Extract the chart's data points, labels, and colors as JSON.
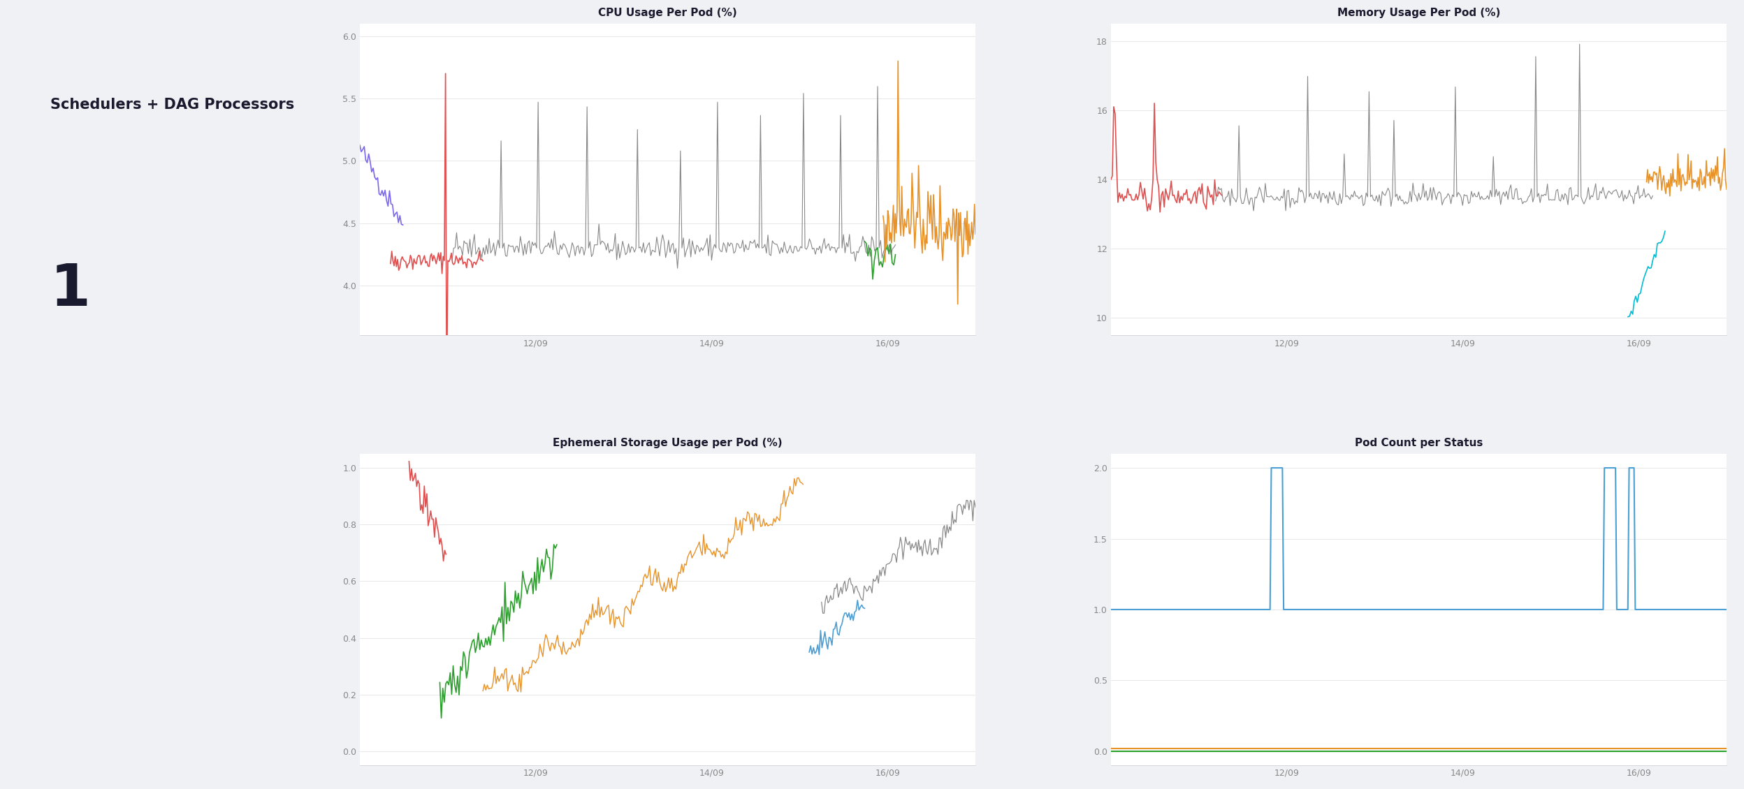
{
  "title": "Schedulers + DAG Processors",
  "number": "1",
  "panel_bg": "#f0f1f5",
  "chart_bg": "#ffffff",
  "border_color": "#e0e0e0",
  "cpu_title": "CPU Usage Per Pod (%)",
  "cpu_ylim": [
    3.6,
    6.1
  ],
  "cpu_yticks": [
    4.0,
    4.5,
    5.0,
    5.5,
    6.0
  ],
  "mem_title": "Memory Usage Per Pod (%)",
  "mem_ylim": [
    9.5,
    18.5
  ],
  "mem_yticks": [
    10,
    12,
    14,
    16,
    18
  ],
  "eph_title": "Ephemeral Storage Usage per Pod (%)",
  "eph_ylim": [
    -0.05,
    1.05
  ],
  "eph_yticks": [
    0,
    0.2,
    0.4,
    0.6,
    0.8,
    1.0
  ],
  "pod_title": "Pod Count per Status",
  "pod_ylim": [
    -0.1,
    2.1
  ],
  "pod_yticks": [
    0,
    0.5,
    1.0,
    1.5,
    2.0
  ],
  "xtick_labels": [
    "12/09",
    "14/09",
    "16/09"
  ],
  "colors": {
    "purple": "#7B68EE",
    "red": "#E05050",
    "gray": "#888888",
    "orange": "#E8922A",
    "green": "#2CA02C",
    "blue": "#4B9FD4",
    "dark_blue": "#1A5F9B",
    "teal": "#00BCD4"
  },
  "grid_color": "#e8e8e8",
  "tick_color": "#888888",
  "title_fontsize": 11,
  "label_fontsize": 9,
  "main_title_fontsize": 15,
  "number_fontsize": 60
}
